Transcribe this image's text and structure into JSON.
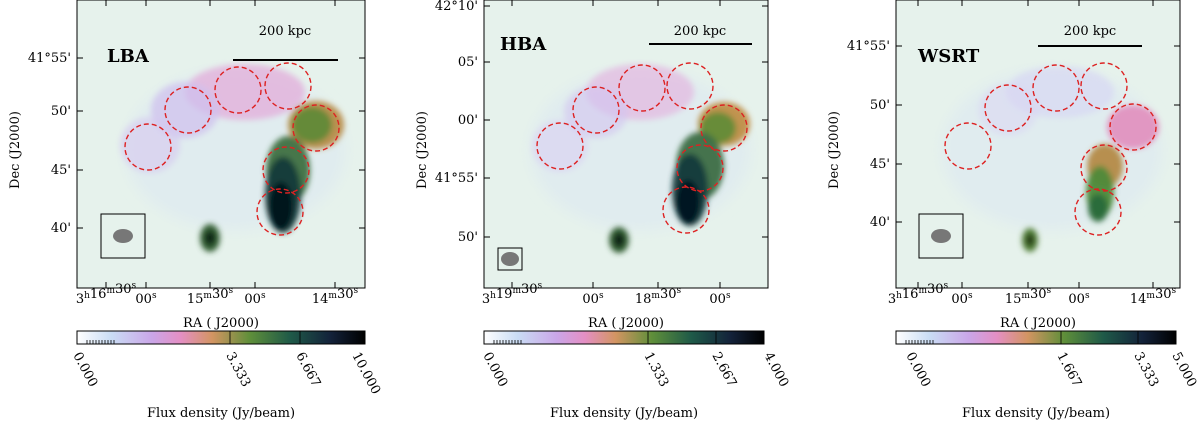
{
  "panels": [
    {
      "id": "lba",
      "label": "LBA",
      "scale_bar": "200 kpc",
      "y_title": "Dec (J2000)",
      "x_title": "RA ( J2000)",
      "x_ticks": [
        {
          "major": "3",
          "sup1": "h",
          "mid": "16",
          "sup2": "m",
          "min": "30",
          "sup3": "s"
        },
        {
          "plain": "00",
          "sup": "s"
        },
        {
          "major": "15",
          "sup1": "m",
          "mid": "30",
          "sup2": "s"
        },
        {
          "plain": "00",
          "sup": "s"
        },
        {
          "major": "14",
          "sup1": "m",
          "mid": "30",
          "sup2": "s"
        }
      ],
      "y_ticks": [
        "41°55'",
        "50'",
        "45'",
        "40'"
      ],
      "colorbar": {
        "ticks": [
          "0.000",
          "3.333",
          "6.667",
          "10.000"
        ],
        "label": "Flux density (Jy/beam)"
      }
    },
    {
      "id": "hba",
      "label": "HBA",
      "scale_bar": "200 kpc",
      "y_title": "Dec (J2000)",
      "x_title": "RA ( J2000)",
      "x_ticks": [
        {
          "major": "3",
          "sup1": "h",
          "mid": "19",
          "sup2": "m",
          "min": "30",
          "sup3": "s"
        },
        {
          "plain": "00",
          "sup": "s"
        },
        {
          "major": "18",
          "sup1": "m",
          "mid": "30",
          "sup2": "s"
        },
        {
          "plain": "00",
          "sup": "s"
        }
      ],
      "y_ticks": [
        "42°10'",
        "05'",
        "00'",
        "41°55'",
        "50'"
      ],
      "colorbar": {
        "ticks": [
          "0.000",
          "1.333",
          "2.667",
          "4.000"
        ],
        "label": "Flux density (Jy/beam)"
      }
    },
    {
      "id": "wsrt",
      "label": "WSRT",
      "scale_bar": "200 kpc",
      "y_title": "Dec (J2000)",
      "x_title": "RA ( J2000)",
      "x_ticks": [
        {
          "major": "3",
          "sup1": "h",
          "mid": "16",
          "sup2": "m",
          "min": "30",
          "sup3": "s"
        },
        {
          "plain": "00",
          "sup": "s"
        },
        {
          "major": "15",
          "sup1": "m",
          "mid": "30",
          "sup2": "s"
        },
        {
          "plain": "00",
          "sup": "s"
        },
        {
          "major": "14",
          "sup1": "m",
          "mid": "30",
          "sup2": "s"
        }
      ],
      "y_ticks": [
        "41°55'",
        "50'",
        "45'",
        "40'"
      ],
      "colorbar": {
        "ticks": [
          "0.000",
          "1.667",
          "3.333",
          "5.000"
        ],
        "label": "Flux density (Jy/beam)"
      }
    }
  ],
  "colors": {
    "background_map": "#e6f2ec",
    "circle_stroke": "#dd2222",
    "colormap": [
      "#ffffff",
      "#c9dcf4",
      "#caa6e8",
      "#e48fc4",
      "#d39562",
      "#5f8f3a",
      "#1f5a48",
      "#13223a",
      "#000000"
    ]
  }
}
